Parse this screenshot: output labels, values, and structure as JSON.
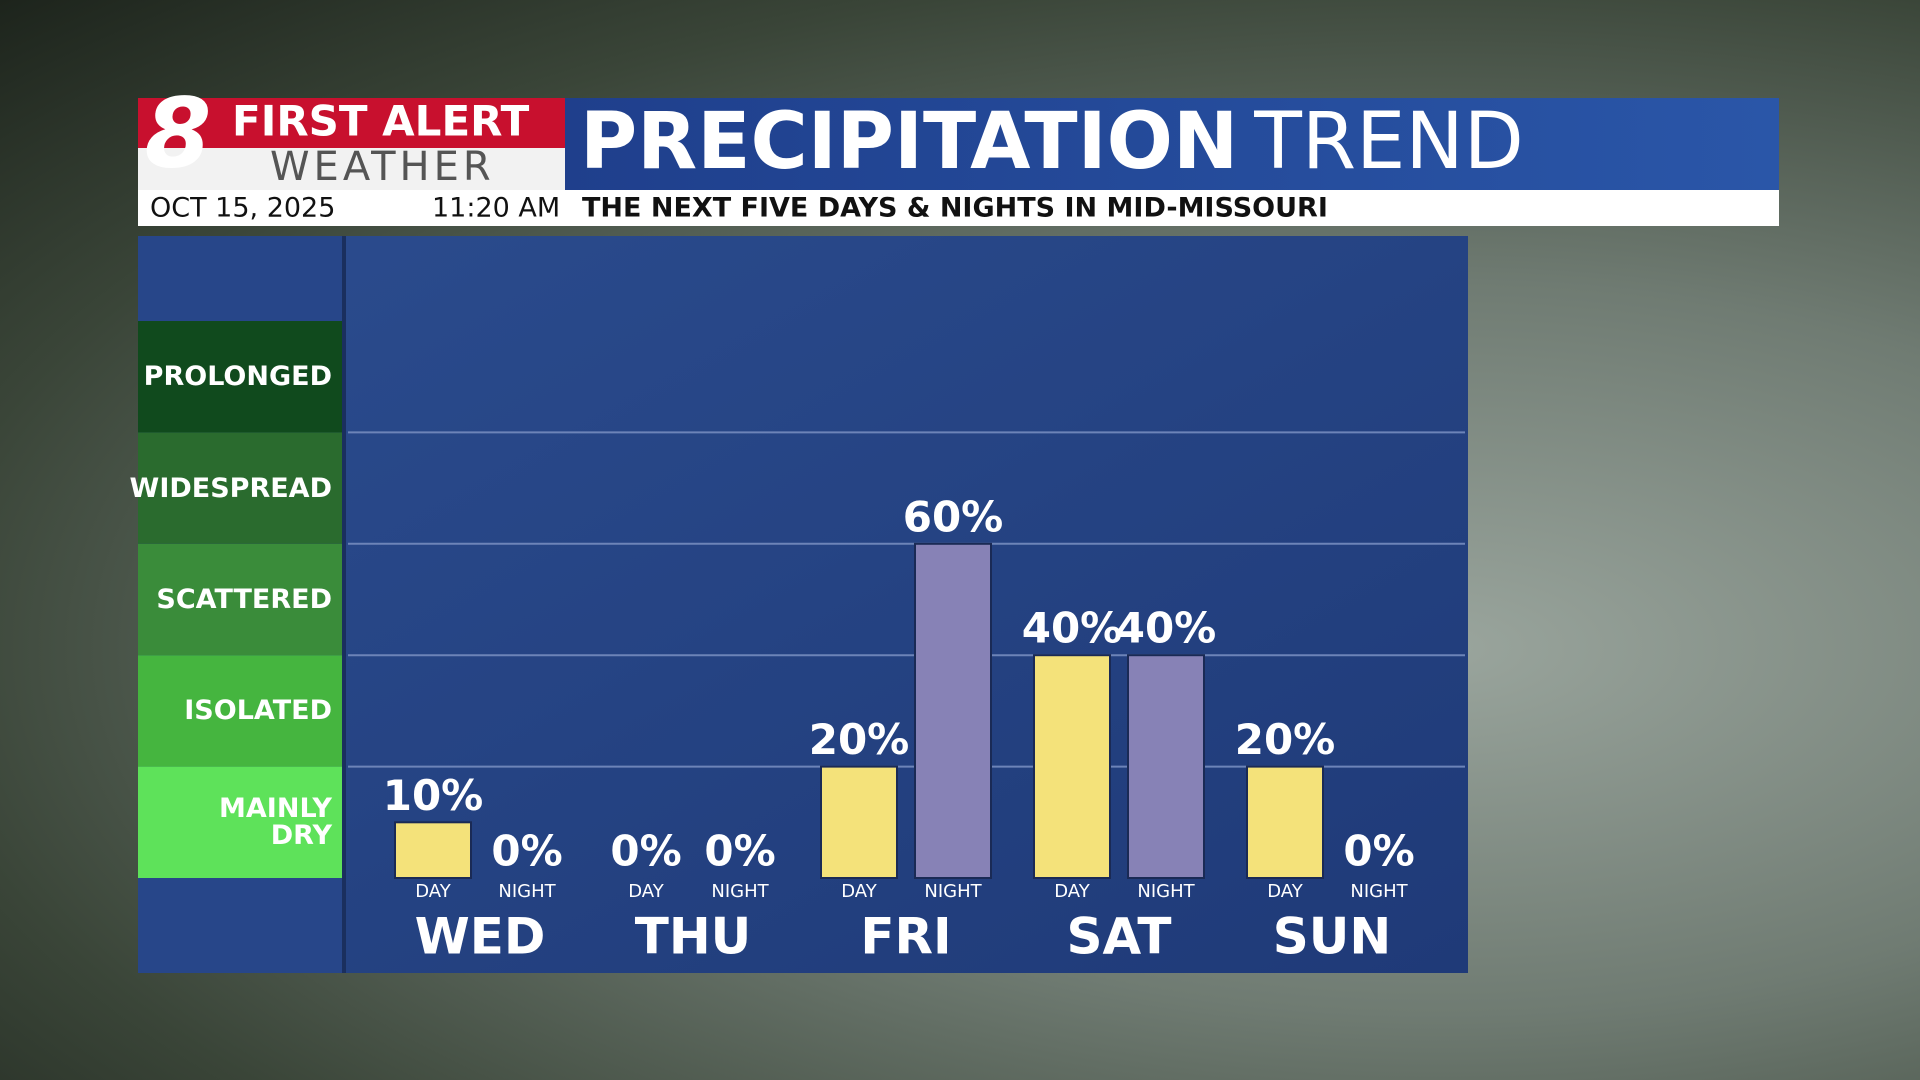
{
  "header": {
    "logo_number": "8",
    "logo_top": "FIRST ALERT",
    "logo_bottom": "WEATHER",
    "date": "OCT 15, 2025",
    "time": "11:20 AM"
  },
  "chart_data": {
    "type": "bar",
    "title_bold": "PRECIPITATION",
    "title_light": "TREND",
    "subtitle": "THE NEXT FIVE DAYS & NIGHTS IN MID-MISSOURI",
    "categories": [
      "WED",
      "THU",
      "FRI",
      "SAT",
      "SUN"
    ],
    "series": [
      {
        "name": "DAY",
        "color": "#f4e27a",
        "values": [
          10,
          0,
          20,
          40,
          20
        ],
        "value_labels": [
          "10%",
          "0%",
          "20%",
          "40%",
          "20%"
        ]
      },
      {
        "name": "NIGHT",
        "color": "#8782b6",
        "values": [
          0,
          0,
          60,
          40,
          0
        ],
        "value_labels": [
          "0%",
          "0%",
          "60%",
          "40%",
          "0%"
        ]
      }
    ],
    "ylim": [
      0,
      100
    ],
    "yticks": [
      20,
      40,
      60,
      80
    ],
    "grid": true,
    "bands": [
      {
        "label": "MAINLY\nDRY",
        "range": [
          0,
          20
        ],
        "color": "#5ee25a"
      },
      {
        "label": "ISOLATED",
        "range": [
          20,
          40
        ],
        "color": "#45b53f"
      },
      {
        "label": "SCATTERED",
        "range": [
          40,
          60
        ],
        "color": "#3a8c3a"
      },
      {
        "label": "WIDESPREAD",
        "range": [
          60,
          80
        ],
        "color": "#2a6b2e"
      },
      {
        "label": "PROLONGED",
        "range": [
          80,
          100
        ],
        "color": "#104a1d"
      }
    ]
  }
}
